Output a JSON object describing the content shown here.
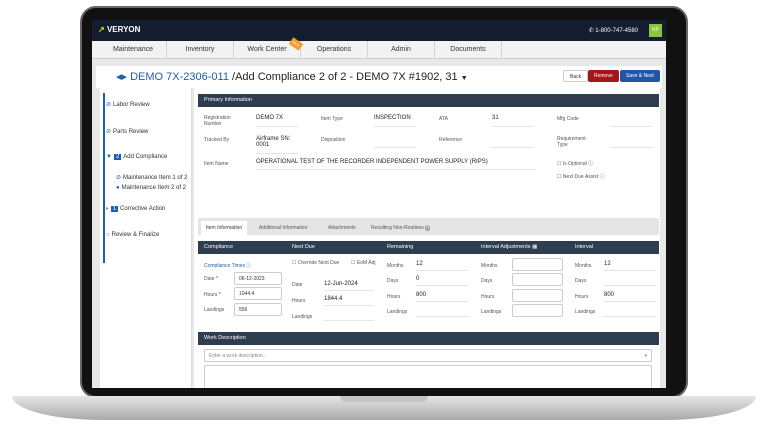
{
  "header": {
    "brand": "VERYON",
    "phone": "1-800-747-4560",
    "avatar": "KP"
  },
  "nav": {
    "items": [
      "Maintenance",
      "Inventory",
      "Work Center",
      "Operations",
      "Admin",
      "Documents"
    ],
    "beta": "BETA"
  },
  "title": {
    "record_id": "DEMO 7X-2306-011",
    "subtitle": "/Add Compliance 2 of 2 - DEMO 7X #1902, 31",
    "back": "Back",
    "remove": "Remove",
    "save_next": "Save & Next"
  },
  "sidebar": {
    "labor": "Labor Review",
    "parts": "Parts Review",
    "add_count": "2",
    "add": "Add Compliance",
    "m1": "Maintenance Item 1 of 2",
    "m2": "Maintenance Item 2 of 2",
    "corr_count": "1",
    "corr": "Corrective Action",
    "review": "Review & Finalize"
  },
  "primary": {
    "header": "Primary Information",
    "reg_label": "Registration Number",
    "reg": "DEMO 7X",
    "type_label": "Item Type",
    "type": "INSPECTION",
    "ata_label": "ATA",
    "ata": "31",
    "mfg_label": "Mfg Code",
    "tracked_label": "Tracked By",
    "tracked": "Airframe SN: 0001",
    "disp_label": "Disposition",
    "ref_label": "Reference",
    "reqtype_label": "Requirement Type",
    "name_label": "Item Name",
    "name": "OPERATIONAL TEST OF THE RECORDER INDEPENDENT POWER SUPPLY (RIPS)",
    "optional": "Is Optional",
    "nda": "Next Due Assist"
  },
  "tabs": [
    "Item Information",
    "Additional Information",
    "Attachments",
    "Resulting Non-Routines"
  ],
  "tabs_badge": "0",
  "grid": {
    "h_comp": "Compliance",
    "h_next": "Next Due",
    "h_rem": "Remaining",
    "h_adj": "Interval Adjustments",
    "h_int": "Interval",
    "comp_times": "Compliance Times",
    "date_l": "Date",
    "date": "06-12-2023",
    "hours_l": "Hours",
    "hours": "1044.4",
    "land_l": "Landings",
    "land": "556",
    "override": "Override Next Due",
    "eom": "EoM Adj",
    "nd_date": "12-Jun-2024",
    "nd_hours": "1844.4",
    "months_l": "Months",
    "days_l": "Days",
    "rem_months": "12",
    "rem_days": "0",
    "rem_hours": "800",
    "int_months": "12",
    "int_hours": "800"
  },
  "work": {
    "header": "Work Description",
    "placeholder": "Enter a work description..."
  }
}
